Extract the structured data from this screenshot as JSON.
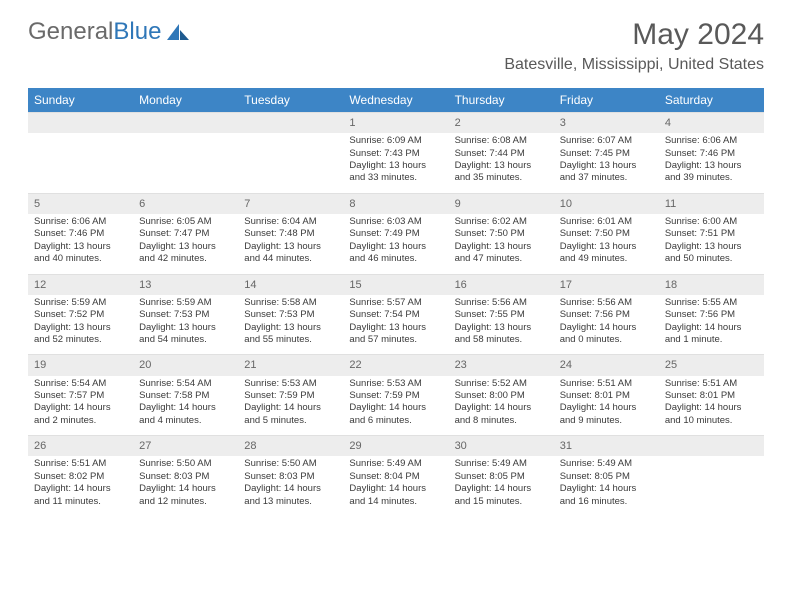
{
  "brand": {
    "part1": "General",
    "part2": "Blue"
  },
  "title": "May 2024",
  "location": "Batesville, Mississippi, United States",
  "colors": {
    "header_bg": "#3d85c6",
    "header_text": "#ffffff",
    "daynum_bg": "#ededed",
    "daynum_text": "#666666",
    "body_text": "#3a3a3a",
    "title_text": "#595959",
    "logo_gray": "#6a6a6a",
    "logo_blue": "#2f77b8"
  },
  "day_headers": [
    "Sunday",
    "Monday",
    "Tuesday",
    "Wednesday",
    "Thursday",
    "Friday",
    "Saturday"
  ],
  "weeks": [
    {
      "nums": [
        "",
        "",
        "",
        "1",
        "2",
        "3",
        "4"
      ],
      "cells": [
        null,
        null,
        null,
        {
          "sunrise": "6:09 AM",
          "sunset": "7:43 PM",
          "dlh": "13",
          "dlm": "33"
        },
        {
          "sunrise": "6:08 AM",
          "sunset": "7:44 PM",
          "dlh": "13",
          "dlm": "35"
        },
        {
          "sunrise": "6:07 AM",
          "sunset": "7:45 PM",
          "dlh": "13",
          "dlm": "37"
        },
        {
          "sunrise": "6:06 AM",
          "sunset": "7:46 PM",
          "dlh": "13",
          "dlm": "39"
        }
      ]
    },
    {
      "nums": [
        "5",
        "6",
        "7",
        "8",
        "9",
        "10",
        "11"
      ],
      "cells": [
        {
          "sunrise": "6:06 AM",
          "sunset": "7:46 PM",
          "dlh": "13",
          "dlm": "40"
        },
        {
          "sunrise": "6:05 AM",
          "sunset": "7:47 PM",
          "dlh": "13",
          "dlm": "42"
        },
        {
          "sunrise": "6:04 AM",
          "sunset": "7:48 PM",
          "dlh": "13",
          "dlm": "44"
        },
        {
          "sunrise": "6:03 AM",
          "sunset": "7:49 PM",
          "dlh": "13",
          "dlm": "46"
        },
        {
          "sunrise": "6:02 AM",
          "sunset": "7:50 PM",
          "dlh": "13",
          "dlm": "47"
        },
        {
          "sunrise": "6:01 AM",
          "sunset": "7:50 PM",
          "dlh": "13",
          "dlm": "49"
        },
        {
          "sunrise": "6:00 AM",
          "sunset": "7:51 PM",
          "dlh": "13",
          "dlm": "50"
        }
      ]
    },
    {
      "nums": [
        "12",
        "13",
        "14",
        "15",
        "16",
        "17",
        "18"
      ],
      "cells": [
        {
          "sunrise": "5:59 AM",
          "sunset": "7:52 PM",
          "dlh": "13",
          "dlm": "52"
        },
        {
          "sunrise": "5:59 AM",
          "sunset": "7:53 PM",
          "dlh": "13",
          "dlm": "54"
        },
        {
          "sunrise": "5:58 AM",
          "sunset": "7:53 PM",
          "dlh": "13",
          "dlm": "55"
        },
        {
          "sunrise": "5:57 AM",
          "sunset": "7:54 PM",
          "dlh": "13",
          "dlm": "57"
        },
        {
          "sunrise": "5:56 AM",
          "sunset": "7:55 PM",
          "dlh": "13",
          "dlm": "58"
        },
        {
          "sunrise": "5:56 AM",
          "sunset": "7:56 PM",
          "dlh": "14",
          "dlm": "0"
        },
        {
          "sunrise": "5:55 AM",
          "sunset": "7:56 PM",
          "dlh": "14",
          "dlm": "1",
          "singular": true
        }
      ]
    },
    {
      "nums": [
        "19",
        "20",
        "21",
        "22",
        "23",
        "24",
        "25"
      ],
      "cells": [
        {
          "sunrise": "5:54 AM",
          "sunset": "7:57 PM",
          "dlh": "14",
          "dlm": "2"
        },
        {
          "sunrise": "5:54 AM",
          "sunset": "7:58 PM",
          "dlh": "14",
          "dlm": "4"
        },
        {
          "sunrise": "5:53 AM",
          "sunset": "7:59 PM",
          "dlh": "14",
          "dlm": "5"
        },
        {
          "sunrise": "5:53 AM",
          "sunset": "7:59 PM",
          "dlh": "14",
          "dlm": "6"
        },
        {
          "sunrise": "5:52 AM",
          "sunset": "8:00 PM",
          "dlh": "14",
          "dlm": "8"
        },
        {
          "sunrise": "5:51 AM",
          "sunset": "8:01 PM",
          "dlh": "14",
          "dlm": "9"
        },
        {
          "sunrise": "5:51 AM",
          "sunset": "8:01 PM",
          "dlh": "14",
          "dlm": "10"
        }
      ]
    },
    {
      "nums": [
        "26",
        "27",
        "28",
        "29",
        "30",
        "31",
        ""
      ],
      "cells": [
        {
          "sunrise": "5:51 AM",
          "sunset": "8:02 PM",
          "dlh": "14",
          "dlm": "11"
        },
        {
          "sunrise": "5:50 AM",
          "sunset": "8:03 PM",
          "dlh": "14",
          "dlm": "12"
        },
        {
          "sunrise": "5:50 AM",
          "sunset": "8:03 PM",
          "dlh": "14",
          "dlm": "13"
        },
        {
          "sunrise": "5:49 AM",
          "sunset": "8:04 PM",
          "dlh": "14",
          "dlm": "14"
        },
        {
          "sunrise": "5:49 AM",
          "sunset": "8:05 PM",
          "dlh": "14",
          "dlm": "15"
        },
        {
          "sunrise": "5:49 AM",
          "sunset": "8:05 PM",
          "dlh": "14",
          "dlm": "16"
        },
        null
      ]
    }
  ],
  "labels": {
    "sunrise_prefix": "Sunrise: ",
    "sunset_prefix": "Sunset: ",
    "daylight_prefix": "Daylight: ",
    "hours_word": " hours",
    "and_word": "and ",
    "minutes_word": " minutes.",
    "minute_word": " minute."
  }
}
